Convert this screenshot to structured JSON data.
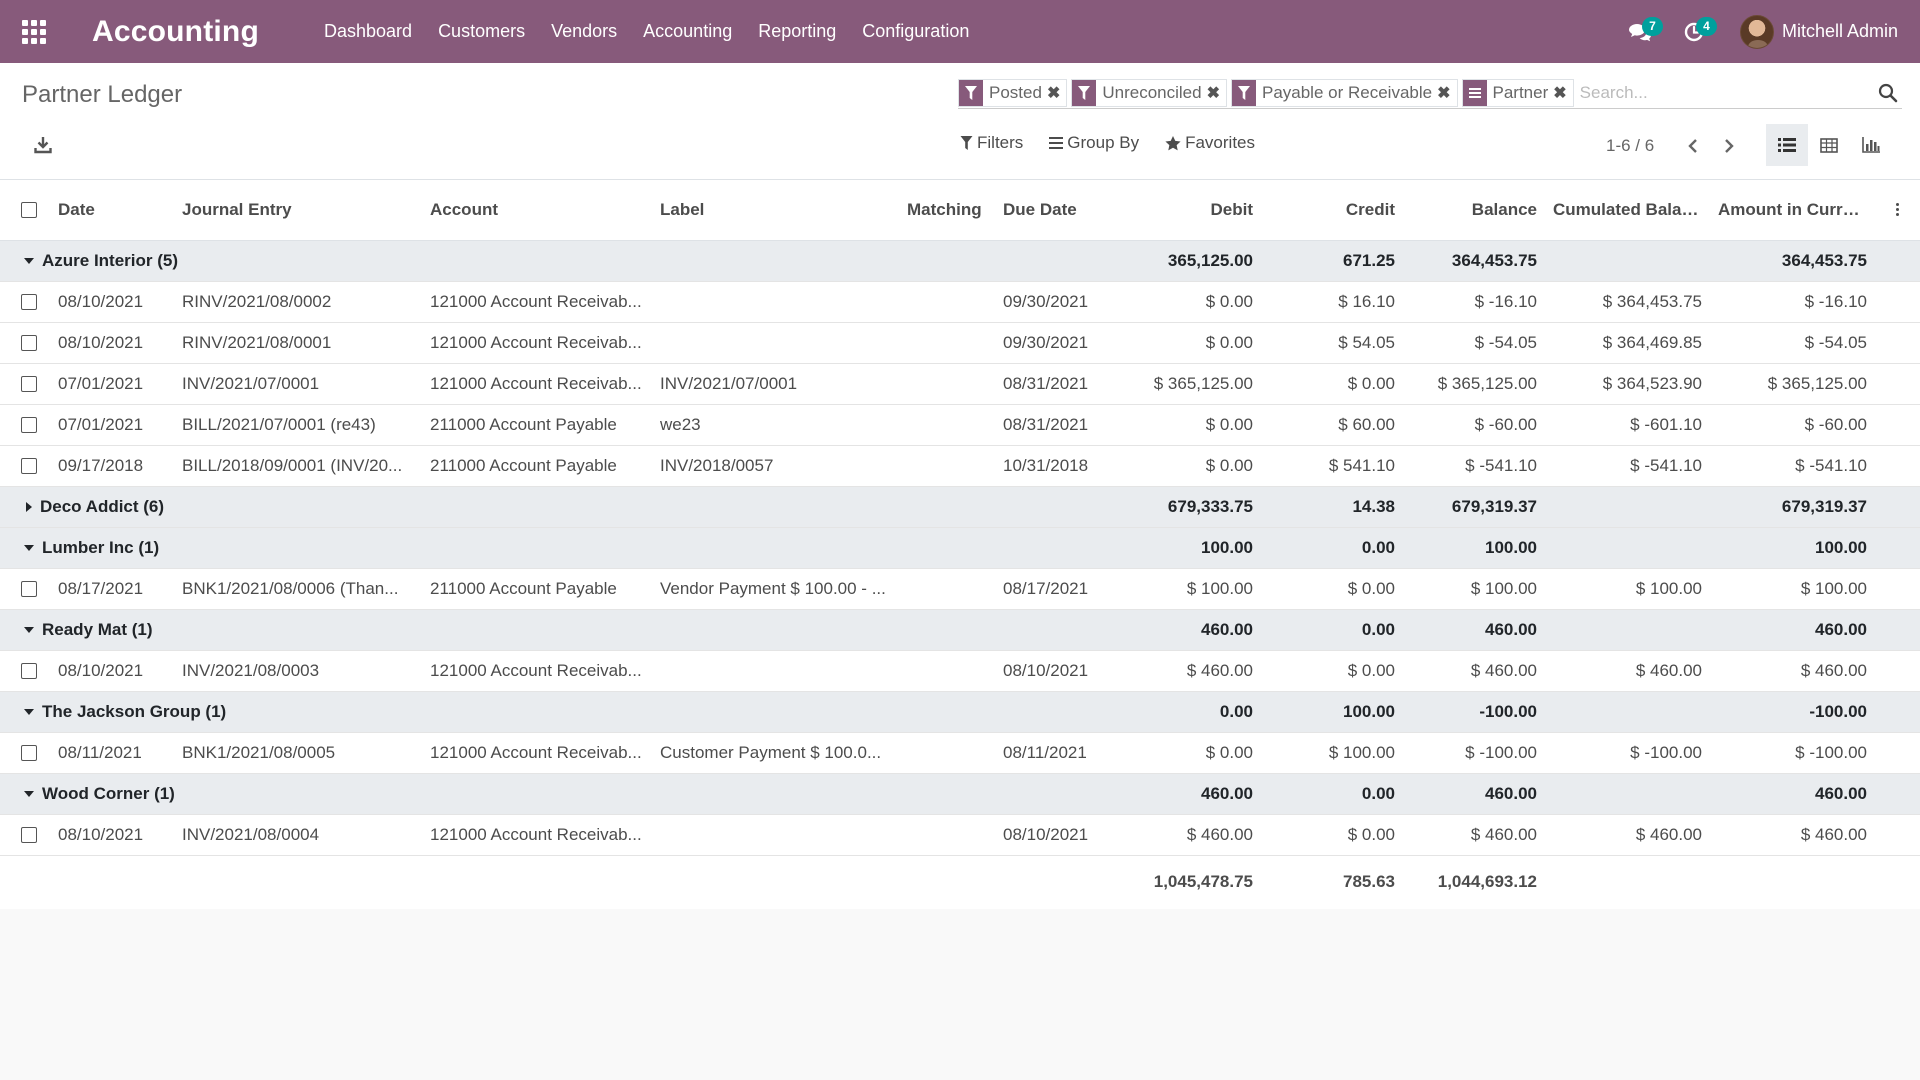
{
  "app": {
    "title": "Accounting"
  },
  "nav": {
    "items": [
      "Dashboard",
      "Customers",
      "Vendors",
      "Accounting",
      "Reporting",
      "Configuration"
    ]
  },
  "systray": {
    "messages_count": "7",
    "activities_count": "4",
    "user_name": "Mitchell Admin"
  },
  "breadcrumb": "Partner Ledger",
  "search": {
    "facets": [
      {
        "label": "Posted",
        "type": "filter"
      },
      {
        "label": "Unreconciled",
        "type": "filter"
      },
      {
        "label": "Payable or Receivable",
        "type": "filter"
      },
      {
        "label": "Partner",
        "type": "groupby"
      }
    ],
    "placeholder": "Search..."
  },
  "filter_menu": {
    "filters": "Filters",
    "group_by": "Group By",
    "favorites": "Favorites"
  },
  "pager": {
    "value": "1-6 / 6"
  },
  "colors": {
    "brand": "#875a7b",
    "badge": "#00a09d",
    "group_bg": "#e9ecef"
  },
  "table": {
    "columns": [
      "Date",
      "Journal Entry",
      "Account",
      "Label",
      "Matching",
      "Due Date",
      "Debit",
      "Credit",
      "Balance",
      "Cumulated Balan...",
      "Amount in Currency"
    ],
    "groups": [
      {
        "name": "Azure Interior (5)",
        "expanded": true,
        "debit": "365,125.00",
        "credit": "671.25",
        "balance": "364,453.75",
        "amount": "364,453.75",
        "rows": [
          [
            "08/10/2021",
            "RINV/2021/08/0002",
            "121000 Account Receivab...",
            "",
            "",
            "09/30/2021",
            "$ 0.00",
            "$ 16.10",
            "$ -16.10",
            "$ 364,453.75",
            "$ -16.10"
          ],
          [
            "08/10/2021",
            "RINV/2021/08/0001",
            "121000 Account Receivab...",
            "",
            "",
            "09/30/2021",
            "$ 0.00",
            "$ 54.05",
            "$ -54.05",
            "$ 364,469.85",
            "$ -54.05"
          ],
          [
            "07/01/2021",
            "INV/2021/07/0001",
            "121000 Account Receivab...",
            "INV/2021/07/0001",
            "",
            "08/31/2021",
            "$ 365,125.00",
            "$ 0.00",
            "$ 365,125.00",
            "$ 364,523.90",
            "$ 365,125.00"
          ],
          [
            "07/01/2021",
            "BILL/2021/07/0001 (re43)",
            "211000 Account Payable",
            "we23",
            "",
            "08/31/2021",
            "$ 0.00",
            "$ 60.00",
            "$ -60.00",
            "$ -601.10",
            "$ -60.00"
          ],
          [
            "09/17/2018",
            "BILL/2018/09/0001 (INV/20...",
            "211000 Account Payable",
            "INV/2018/0057",
            "",
            "10/31/2018",
            "$ 0.00",
            "$ 541.10",
            "$ -541.10",
            "$ -541.10",
            "$ -541.10"
          ]
        ]
      },
      {
        "name": "Deco Addict (6)",
        "expanded": false,
        "debit": "679,333.75",
        "credit": "14.38",
        "balance": "679,319.37",
        "amount": "679,319.37",
        "rows": []
      },
      {
        "name": "Lumber Inc (1)",
        "expanded": true,
        "debit": "100.00",
        "credit": "0.00",
        "balance": "100.00",
        "amount": "100.00",
        "rows": [
          [
            "08/17/2021",
            "BNK1/2021/08/0006 (Than...",
            "211000 Account Payable",
            "Vendor Payment $ 100.00 - ...",
            "",
            "08/17/2021",
            "$ 100.00",
            "$ 0.00",
            "$ 100.00",
            "$ 100.00",
            "$ 100.00"
          ]
        ]
      },
      {
        "name": "Ready Mat (1)",
        "expanded": true,
        "debit": "460.00",
        "credit": "0.00",
        "balance": "460.00",
        "amount": "460.00",
        "rows": [
          [
            "08/10/2021",
            "INV/2021/08/0003",
            "121000 Account Receivab...",
            "",
            "",
            "08/10/2021",
            "$ 460.00",
            "$ 0.00",
            "$ 460.00",
            "$ 460.00",
            "$ 460.00"
          ]
        ]
      },
      {
        "name": "The Jackson Group (1)",
        "expanded": true,
        "debit": "0.00",
        "credit": "100.00",
        "balance": "-100.00",
        "amount": "-100.00",
        "rows": [
          [
            "08/11/2021",
            "BNK1/2021/08/0005",
            "121000 Account Receivab...",
            "Customer Payment $ 100.0...",
            "",
            "08/11/2021",
            "$ 0.00",
            "$ 100.00",
            "$ -100.00",
            "$ -100.00",
            "$ -100.00"
          ]
        ]
      },
      {
        "name": "Wood Corner (1)",
        "expanded": true,
        "debit": "460.00",
        "credit": "0.00",
        "balance": "460.00",
        "amount": "460.00",
        "rows": [
          [
            "08/10/2021",
            "INV/2021/08/0004",
            "121000 Account Receivab...",
            "",
            "",
            "08/10/2021",
            "$ 460.00",
            "$ 0.00",
            "$ 460.00",
            "$ 460.00",
            "$ 460.00"
          ]
        ]
      }
    ],
    "totals": {
      "debit": "1,045,478.75",
      "credit": "785.63",
      "balance": "1,044,693.12"
    }
  }
}
